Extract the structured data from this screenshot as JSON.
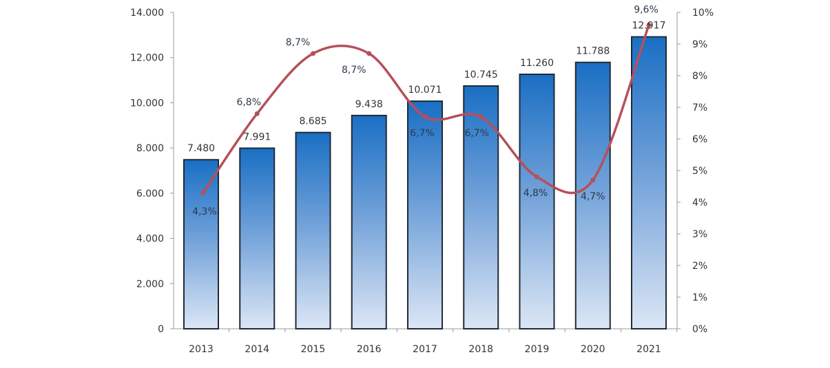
{
  "chart_data": {
    "type": "bar+line",
    "categories": [
      "2013",
      "2014",
      "2015",
      "2016",
      "2017",
      "2018",
      "2019",
      "2020",
      "2021"
    ],
    "series": [
      {
        "type": "bar",
        "axis": "left",
        "values": [
          7480,
          7991,
          8685,
          9438,
          10071,
          10745,
          11260,
          11788,
          12917
        ],
        "labels": [
          "7.480",
          "7.991",
          "8.685",
          "9.438",
          "10.071",
          "10.745",
          "11.260",
          "11.788",
          "12.917"
        ]
      },
      {
        "type": "line",
        "axis": "right",
        "values": [
          4.3,
          6.8,
          8.7,
          8.7,
          6.7,
          6.7,
          4.8,
          4.7,
          9.6
        ],
        "labels": [
          "4,3%",
          "6,8%",
          "8,7%",
          "8,7%",
          "6,7%",
          "6,7%",
          "4,8%",
          "4,7%",
          "9,6%"
        ]
      }
    ],
    "left_axis": {
      "range": [
        0,
        14000
      ],
      "ticks": [
        "0",
        "2.000",
        "4.000",
        "6.000",
        "8.000",
        "10.000",
        "12.000",
        "14.000"
      ]
    },
    "right_axis": {
      "range": [
        0,
        10
      ],
      "unit": "%",
      "ticks": [
        "0%",
        "1%",
        "2%",
        "3%",
        "4%",
        "5%",
        "6%",
        "7%",
        "8%",
        "9%",
        "10%"
      ]
    },
    "grid": false,
    "legend": "none",
    "colors": {
      "bar_top": "#1a6fc4",
      "bar_bottom": "#dce6f5",
      "bar_border": "#1f2a36",
      "line": "#b5505a"
    }
  }
}
